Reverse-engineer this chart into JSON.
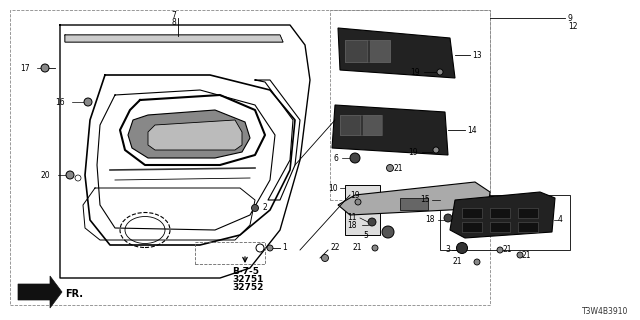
{
  "bg_color": "#ffffff",
  "line_color": "#000000",
  "part_number": "T3W4B3910",
  "figsize": [
    6.4,
    3.2
  ],
  "dpi": 100
}
